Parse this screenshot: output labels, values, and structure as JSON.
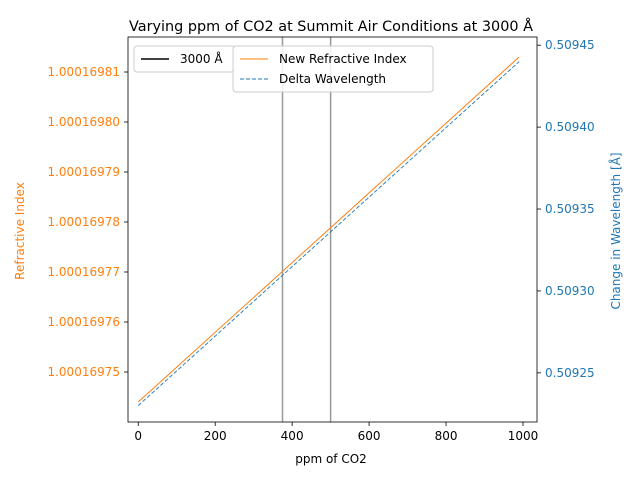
{
  "chart_data": {
    "type": "line",
    "title": "Varying ppm of CO2 at Summit Air Conditions at 3000 Å",
    "xlabel": "ppm of CO2",
    "ylabel_left": "Refractive Index",
    "ylabel_right": "Change in Wavelength [Å]",
    "xlim": [
      -26.6,
      1036.4
    ],
    "ylim_left": [
      1.00016974,
      1.000169817
    ],
    "ylim_right": [
      0.50922,
      0.509455
    ],
    "xticks": [
      0,
      200,
      400,
      600,
      800,
      1000
    ],
    "yticks_left": [
      1.00016975,
      1.00016976,
      1.00016977,
      1.00016978,
      1.00016979,
      1.0001698,
      1.00016981
    ],
    "ytick_labels_left": [
      "1.00016975",
      "1.00016976",
      "1.00016977",
      "1.00016978",
      "1.00016979",
      "1.00016980",
      "1.00016981"
    ],
    "yticks_right": [
      0.50925,
      0.5093,
      0.50935,
      0.5094,
      0.50945
    ],
    "ytick_labels_right": [
      "0.50925",
      "0.50930",
      "0.50935",
      "0.50940",
      "0.50945"
    ],
    "vlines": [
      375,
      500
    ],
    "series": [
      {
        "name": "New Refractive Index",
        "axis": "left",
        "style": "solid",
        "color": "#ff7f0e",
        "x": [
          0,
          990
        ],
        "y": [
          1.000169744,
          1.000169813
        ]
      },
      {
        "name": "Delta Wavelength",
        "axis": "right",
        "style": "dashed",
        "color": "#1f77b4",
        "x": [
          0,
          990
        ],
        "y": [
          0.50923,
          0.50944
        ]
      }
    ],
    "legend_left": [
      {
        "label": "3000 Å",
        "color": "#000000",
        "style": "solid"
      }
    ],
    "legend_right": [
      {
        "label": "New Refractive Index",
        "color": "#ff7f0e",
        "style": "solid"
      },
      {
        "label": "Delta Wavelength",
        "color": "#1f77b4",
        "style": "dashed"
      }
    ],
    "grid": false,
    "colors": {
      "left_axis": "#ff7f0e",
      "right_axis": "#1f77b4",
      "vline": "#999999"
    }
  }
}
